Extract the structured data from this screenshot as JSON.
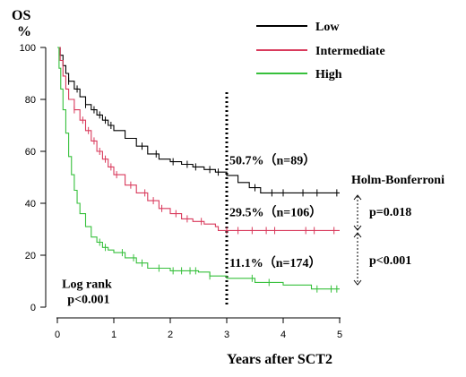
{
  "chart_data": {
    "type": "line",
    "ylabel_line1": "OS",
    "ylabel_line2": "%",
    "xlabel": "Years after SCT2",
    "xlim": [
      0,
      5
    ],
    "ylim": [
      0,
      100
    ],
    "xticks": [
      0,
      1,
      2,
      3,
      4,
      5
    ],
    "yticks": [
      0,
      20,
      40,
      60,
      80,
      100
    ],
    "grid": false,
    "legend_position": "top-right",
    "vline_x": 3,
    "series": [
      {
        "name": "Low",
        "color": "#000000",
        "x": [
          0,
          0.05,
          0.1,
          0.15,
          0.2,
          0.3,
          0.4,
          0.5,
          0.6,
          0.7,
          0.8,
          0.9,
          1.0,
          1.2,
          1.4,
          1.6,
          1.8,
          2.0,
          2.2,
          2.4,
          2.6,
          2.8,
          3.0,
          3.2,
          3.4,
          3.6,
          5.0
        ],
        "y": [
          100,
          97,
          93,
          90,
          87,
          84,
          81,
          78,
          76,
          74,
          72,
          70,
          68,
          65,
          62,
          59,
          57,
          56,
          55,
          54,
          53,
          52,
          50.7,
          48,
          46,
          44,
          44
        ],
        "censor_x": [
          0.2,
          0.35,
          0.5,
          0.65,
          0.75,
          0.85,
          0.95,
          1.5,
          1.75,
          2.05,
          2.3,
          2.45,
          2.7,
          2.85,
          3.5,
          3.8,
          4.0,
          4.35,
          4.6,
          4.95
        ]
      },
      {
        "name": "Intermediate",
        "color": "#d93a5c",
        "x": [
          0,
          0.05,
          0.1,
          0.15,
          0.2,
          0.3,
          0.4,
          0.5,
          0.6,
          0.7,
          0.8,
          0.9,
          1.0,
          1.2,
          1.4,
          1.6,
          1.8,
          2.0,
          2.2,
          2.4,
          2.6,
          2.8,
          2.85,
          5.0
        ],
        "y": [
          100,
          95,
          89,
          84,
          80,
          76,
          72,
          68,
          64,
          60,
          57,
          54,
          51,
          47,
          44,
          41,
          38,
          36,
          34,
          33,
          32,
          31,
          29.5,
          29.5
        ],
        "censor_x": [
          0.3,
          0.45,
          0.55,
          0.65,
          0.75,
          0.85,
          0.95,
          1.05,
          1.3,
          1.55,
          1.7,
          1.85,
          2.1,
          2.3,
          2.55,
          3.0,
          3.2,
          3.45,
          3.7,
          3.85,
          4.4,
          4.55,
          4.9
        ]
      },
      {
        "name": "High",
        "color": "#37c03c",
        "x": [
          0,
          0.03,
          0.06,
          0.1,
          0.15,
          0.2,
          0.25,
          0.3,
          0.35,
          0.4,
          0.5,
          0.6,
          0.7,
          0.8,
          0.9,
          1.0,
          1.2,
          1.4,
          1.6,
          2.0,
          2.5,
          2.7,
          3.0,
          3.5,
          4.0,
          4.5,
          5.0
        ],
        "y": [
          100,
          92,
          84,
          76,
          67,
          58,
          51,
          45,
          40,
          36,
          31,
          27,
          25,
          23,
          22,
          21,
          19,
          17,
          15,
          14,
          13.5,
          12,
          11.1,
          9.5,
          8.5,
          7,
          7
        ],
        "censor_x": [
          0.75,
          0.85,
          1.15,
          1.35,
          1.5,
          1.8,
          2.05,
          2.2,
          2.35,
          2.45,
          2.7,
          3.45,
          3.75,
          4.6,
          4.85,
          4.95
        ]
      }
    ],
    "annotations": [
      {
        "text": "50.7%（n=89）",
        "x": 3.0,
        "y": 55
      },
      {
        "text": "29.5%（n=106）",
        "x": 3.0,
        "y": 35
      },
      {
        "text": "11.1%（n=174）",
        "x": 3.0,
        "y": 15.5
      },
      {
        "text": "Log rank",
        "x": 0.05,
        "y": 7.5
      },
      {
        "text": "p<0.001",
        "x": 0.1,
        "y": 1.5
      }
    ],
    "side_labels": {
      "method": "Holm-Bonferroni",
      "p_top": "p=0.018",
      "p_bottom": "p<0.001"
    }
  }
}
